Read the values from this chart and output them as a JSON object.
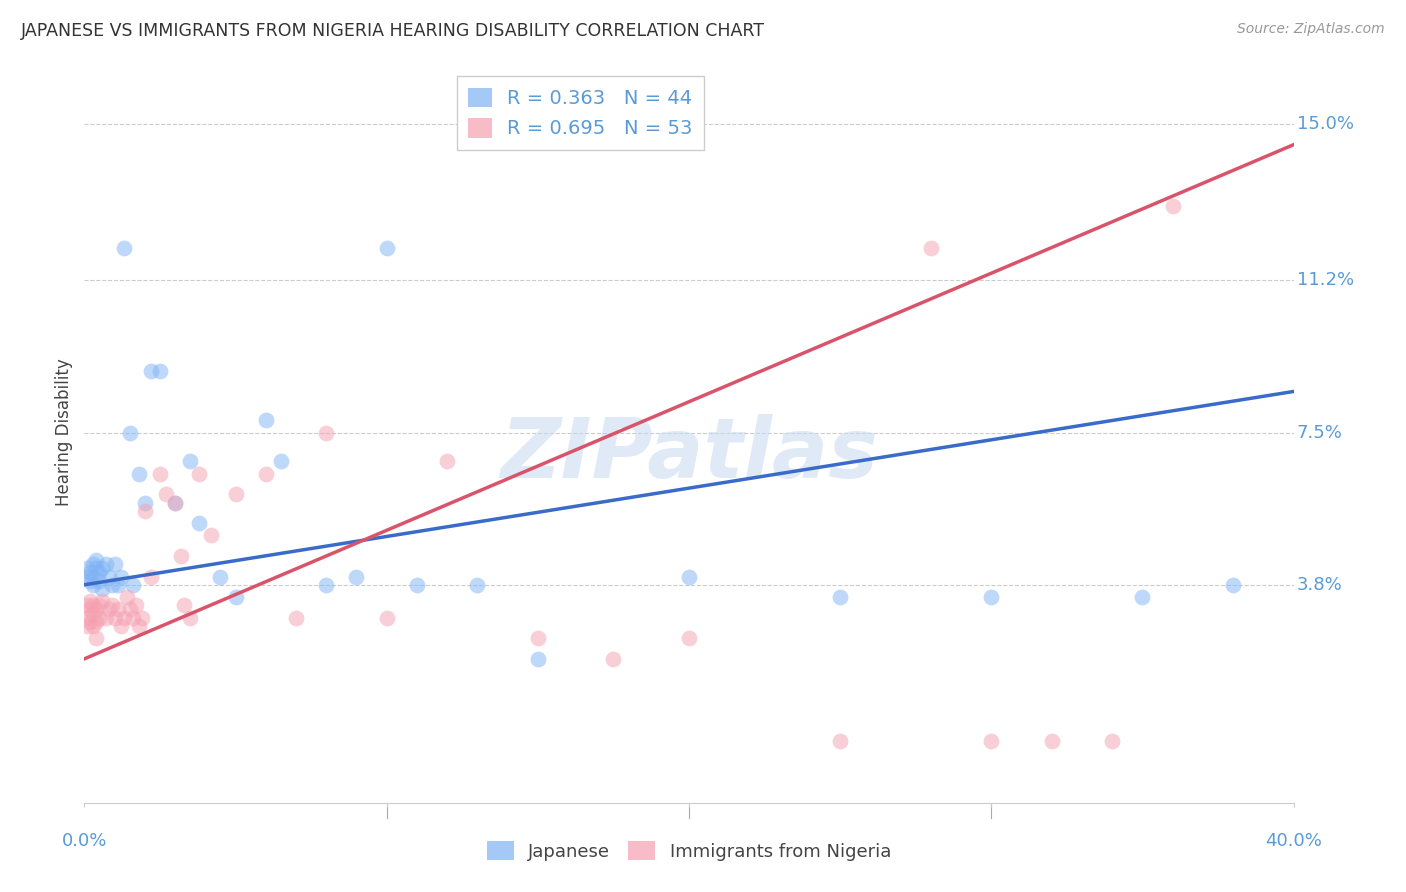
{
  "title": "JAPANESE VS IMMIGRANTS FROM NIGERIA HEARING DISABILITY CORRELATION CHART",
  "source": "Source: ZipAtlas.com",
  "tick_color": "#5b9bd5",
  "ylabel": "Hearing Disability",
  "xlim": [
    0.0,
    0.4
  ],
  "ylim": [
    -0.015,
    0.165
  ],
  "xtick_positions": [
    0.0,
    0.4
  ],
  "xtick_labels": [
    "0.0%",
    "40.0%"
  ],
  "ytick_positions": [
    0.038,
    0.075,
    0.112,
    0.15
  ],
  "ytick_labels": [
    "3.8%",
    "7.5%",
    "11.2%",
    "15.0%"
  ],
  "japanese_color": "#7fb3f5",
  "nigeria_color": "#f5a0b0",
  "japanese_line_color": "#3a6bc9",
  "nigeria_line_color": "#d9546a",
  "japanese_R": 0.363,
  "japanese_N": 44,
  "nigeria_R": 0.695,
  "nigeria_N": 53,
  "watermark": "ZIPatlas",
  "background_color": "#ffffff",
  "grid_color": "#cccccc",
  "japanese_line_x0": 0.0,
  "japanese_line_y0": 0.038,
  "japanese_line_x1": 0.4,
  "japanese_line_y1": 0.085,
  "nigeria_line_x0": 0.0,
  "nigeria_line_y0": 0.02,
  "nigeria_line_x1": 0.4,
  "nigeria_line_y1": 0.145,
  "japanese_x": [
    0.001,
    0.001,
    0.002,
    0.002,
    0.003,
    0.003,
    0.003,
    0.004,
    0.004,
    0.005,
    0.005,
    0.006,
    0.006,
    0.007,
    0.008,
    0.009,
    0.01,
    0.011,
    0.012,
    0.013,
    0.015,
    0.016,
    0.018,
    0.02,
    0.022,
    0.025,
    0.03,
    0.035,
    0.038,
    0.045,
    0.05,
    0.06,
    0.065,
    0.08,
    0.09,
    0.1,
    0.11,
    0.13,
    0.15,
    0.2,
    0.25,
    0.3,
    0.35,
    0.38
  ],
  "japanese_y": [
    0.04,
    0.042,
    0.041,
    0.039,
    0.043,
    0.04,
    0.038,
    0.042,
    0.044,
    0.039,
    0.041,
    0.037,
    0.042,
    0.043,
    0.04,
    0.038,
    0.043,
    0.038,
    0.04,
    0.12,
    0.075,
    0.038,
    0.065,
    0.058,
    0.09,
    0.09,
    0.058,
    0.068,
    0.053,
    0.04,
    0.035,
    0.078,
    0.068,
    0.038,
    0.04,
    0.12,
    0.038,
    0.038,
    0.02,
    0.04,
    0.035,
    0.035,
    0.035,
    0.038
  ],
  "nigeria_x": [
    0.001,
    0.001,
    0.001,
    0.002,
    0.002,
    0.002,
    0.003,
    0.003,
    0.003,
    0.004,
    0.004,
    0.004,
    0.005,
    0.005,
    0.006,
    0.007,
    0.008,
    0.009,
    0.01,
    0.011,
    0.012,
    0.013,
    0.014,
    0.015,
    0.016,
    0.017,
    0.018,
    0.019,
    0.02,
    0.022,
    0.025,
    0.027,
    0.03,
    0.032,
    0.033,
    0.035,
    0.038,
    0.042,
    0.05,
    0.06,
    0.07,
    0.08,
    0.1,
    0.12,
    0.15,
    0.175,
    0.2,
    0.25,
    0.28,
    0.3,
    0.32,
    0.34,
    0.36
  ],
  "nigeria_y": [
    0.033,
    0.03,
    0.028,
    0.032,
    0.034,
    0.029,
    0.028,
    0.031,
    0.033,
    0.029,
    0.032,
    0.025,
    0.03,
    0.033,
    0.034,
    0.03,
    0.032,
    0.033,
    0.03,
    0.032,
    0.028,
    0.03,
    0.035,
    0.032,
    0.03,
    0.033,
    0.028,
    0.03,
    0.056,
    0.04,
    0.065,
    0.06,
    0.058,
    0.045,
    0.033,
    0.03,
    0.065,
    0.05,
    0.06,
    0.065,
    0.03,
    0.075,
    0.03,
    0.068,
    0.025,
    0.02,
    0.025,
    0.0,
    0.12,
    0.0,
    0.0,
    0.0,
    0.13
  ]
}
